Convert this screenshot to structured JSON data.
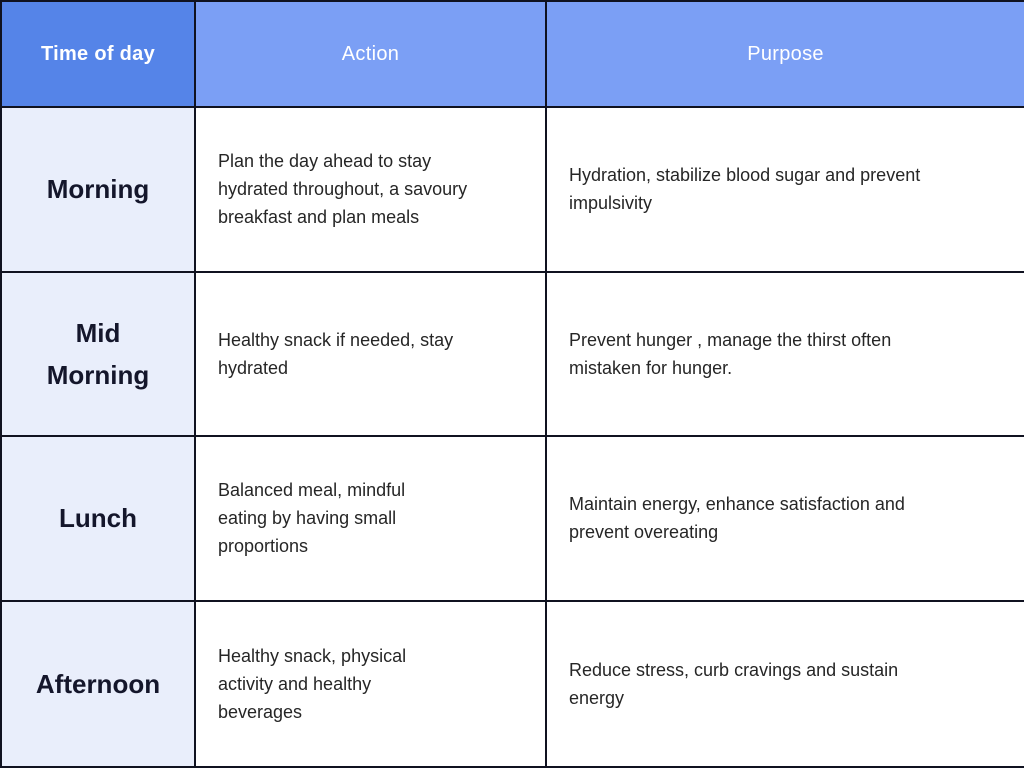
{
  "table": {
    "columns": [
      {
        "label": "Time of day"
      },
      {
        "label": "Action"
      },
      {
        "label": "Purpose"
      }
    ],
    "rows": [
      {
        "time": "Morning",
        "action": "Plan the day ahead to stay\nhydrated throughout, a savoury\nbreakfast and plan meals",
        "purpose": "Hydration,  stabilize blood sugar and prevent\nimpulsivity"
      },
      {
        "time": "Mid\nMorning",
        "action": "Healthy snack if needed, stay\nhydrated",
        "purpose": "Prevent hunger , manage the thirst often\nmistaken for hunger."
      },
      {
        "time": "Lunch",
        "action": "Balanced meal, mindful\neating by having small\nproportions",
        "purpose": "Maintain energy, enhance satisfaction and\nprevent overeating"
      },
      {
        "time": "Afternoon",
        "action": "Healthy snack, physical\nactivity and healthy\nbeverages",
        "purpose": "Reduce stress, curb cravings and sustain\nenergy"
      }
    ],
    "colors": {
      "header_first_bg": "#5584e8",
      "header_bg": "#7b9ff5",
      "row_label_bg": "#e9eefb",
      "body_bg": "#ffffff",
      "border": "#101220",
      "header_text": "#ffffff",
      "label_text": "#14162b",
      "body_text": "#262626"
    }
  }
}
